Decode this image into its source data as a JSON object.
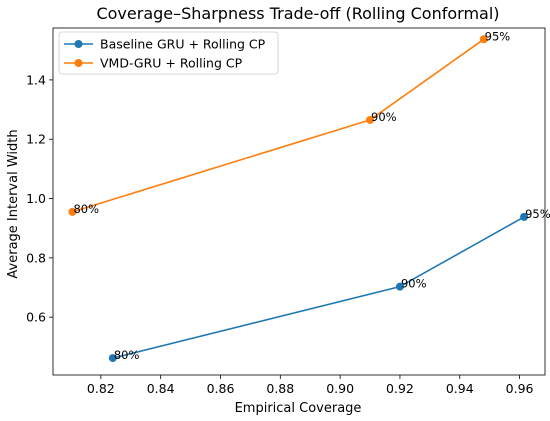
{
  "chart_data": {
    "type": "line",
    "title": "Coverage–Sharpness Trade-off (Rolling Conformal)",
    "xlabel": "Empirical Coverage",
    "ylabel": "Average Interval Width",
    "xlim": [
      0.804,
      0.9685
    ],
    "ylim": [
      0.405,
      1.575
    ],
    "xticks": [
      0.82,
      0.84,
      0.86,
      0.88,
      0.9,
      0.92,
      0.94,
      0.96
    ],
    "xtick_labels": [
      "0.82",
      "0.84",
      "0.86",
      "0.88",
      "0.90",
      "0.92",
      "0.94",
      "0.96"
    ],
    "yticks": [
      0.6,
      0.8,
      1.0,
      1.2,
      1.4
    ],
    "ytick_labels": [
      "0.6",
      "0.8",
      "1.0",
      "1.2",
      "1.4"
    ],
    "grid": false,
    "legend_position": "upper-left",
    "series": [
      {
        "name": "Baseline GRU + Rolling CP",
        "color": "#1f77b4",
        "x": [
          0.824,
          0.92,
          0.9615
        ],
        "y": [
          0.462,
          0.703,
          0.938
        ],
        "point_labels": [
          "80%",
          "90%",
          "95%"
        ]
      },
      {
        "name": "VMD-GRU + Rolling CP",
        "color": "#ff7f0e",
        "x": [
          0.8105,
          0.91,
          0.948
        ],
        "y": [
          0.955,
          1.265,
          1.537
        ],
        "point_labels": [
          "80%",
          "90%",
          "95%"
        ]
      }
    ]
  }
}
